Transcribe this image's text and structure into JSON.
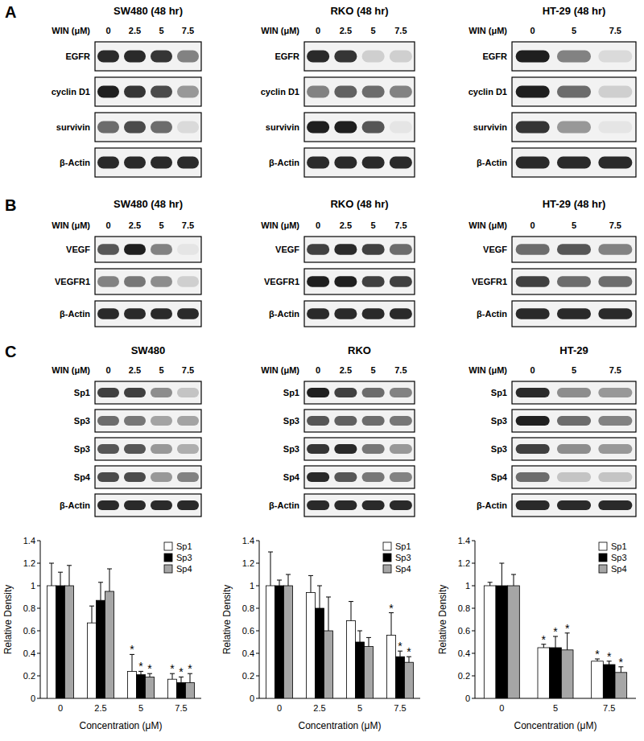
{
  "blots": [
    {
      "letter": "A",
      "panels": [
        {
          "title": "SW480 (48 hr)",
          "dose_label": "WIN (μM)",
          "doses": [
            "0",
            "2.5",
            "5",
            "7.5"
          ],
          "rows": [
            {
              "label": "EGFR",
              "intensity": [
                0.9,
                0.9,
                0.85,
                0.5
              ]
            },
            {
              "label": "cyclin D1",
              "intensity": [
                0.95,
                0.85,
                0.75,
                0.4
              ]
            },
            {
              "label": "survivin",
              "intensity": [
                0.6,
                0.75,
                0.6,
                0.1
              ]
            },
            {
              "label": "β-Actin",
              "intensity": [
                0.9,
                0.9,
                0.9,
                0.9
              ]
            }
          ]
        },
        {
          "title": "RKO (48 hr)",
          "dose_label": "WIN (μM)",
          "doses": [
            "0",
            "2.5",
            "5",
            "7.5"
          ],
          "rows": [
            {
              "label": "EGFR",
              "intensity": [
                0.9,
                0.85,
                0.15,
                0.15
              ]
            },
            {
              "label": "cyclin D1",
              "intensity": [
                0.5,
                0.65,
                0.6,
                0.5
              ]
            },
            {
              "label": "survivin",
              "intensity": [
                0.95,
                0.95,
                0.7,
                0.05
              ]
            },
            {
              "label": "β-Actin",
              "intensity": [
                0.9,
                0.9,
                0.9,
                0.9
              ]
            }
          ]
        },
        {
          "title": "HT-29 (48 hr)",
          "dose_label": "WIN (μM)",
          "doses": [
            "0",
            "5",
            "7.5"
          ],
          "rows": [
            {
              "label": "EGFR",
              "intensity": [
                0.95,
                0.5,
                0.1
              ]
            },
            {
              "label": "cyclin D1",
              "intensity": [
                0.95,
                0.6,
                0.15
              ]
            },
            {
              "label": "survivin",
              "intensity": [
                0.85,
                0.4,
                0.05
              ]
            },
            {
              "label": "β-Actin",
              "intensity": [
                0.9,
                0.9,
                0.9
              ]
            }
          ]
        }
      ]
    },
    {
      "letter": "B",
      "panels": [
        {
          "title": "SW480 (48 hr)",
          "dose_label": "WIN (μM)",
          "doses": [
            "0",
            "2.5",
            "5",
            "7.5"
          ],
          "rows": [
            {
              "label": "VEGF",
              "intensity": [
                0.7,
                0.95,
                0.5,
                0.05
              ]
            },
            {
              "label": "VEGFR1",
              "intensity": [
                0.5,
                0.55,
                0.45,
                0.15
              ]
            },
            {
              "label": "β-Actin",
              "intensity": [
                0.9,
                0.9,
                0.9,
                0.9
              ]
            }
          ]
        },
        {
          "title": "RKO (48 hr)",
          "dose_label": "WIN (μM)",
          "doses": [
            "0",
            "2.5",
            "5",
            "7.5"
          ],
          "rows": [
            {
              "label": "VEGF",
              "intensity": [
                0.8,
                0.9,
                0.8,
                0.6
              ]
            },
            {
              "label": "VEGFR1",
              "intensity": [
                0.95,
                0.95,
                0.8,
                0.8
              ]
            },
            {
              "label": "β-Actin",
              "intensity": [
                0.9,
                0.9,
                0.9,
                0.9
              ]
            }
          ]
        },
        {
          "title": "HT-29 (48 hr)",
          "dose_label": "WIN (μM)",
          "doses": [
            "0",
            "5",
            "7.5"
          ],
          "rows": [
            {
              "label": "VEGF",
              "intensity": [
                0.6,
                0.7,
                0.5
              ]
            },
            {
              "label": "VEGFR1",
              "intensity": [
                0.8,
                0.6,
                0.6
              ]
            },
            {
              "label": "β-Actin",
              "intensity": [
                0.9,
                0.9,
                0.9
              ]
            }
          ]
        }
      ]
    },
    {
      "letter": "C",
      "panels": [
        {
          "title": "SW480",
          "dose_label": "WIN (μM)",
          "doses": [
            "0",
            "2.5",
            "5",
            "7.5"
          ],
          "rows": [
            {
              "label": "Sp1",
              "intensity": [
                0.8,
                0.8,
                0.45,
                0.2
              ]
            },
            {
              "label": "Sp3",
              "intensity": [
                0.6,
                0.55,
                0.35,
                0.35
              ]
            },
            {
              "label": "Sp3",
              "intensity": [
                0.7,
                0.7,
                0.4,
                0.3
              ]
            },
            {
              "label": "Sp4",
              "intensity": [
                0.75,
                0.75,
                0.4,
                0.5
              ]
            },
            {
              "label": "β-Actin",
              "intensity": [
                0.9,
                0.9,
                0.9,
                0.9
              ]
            }
          ]
        },
        {
          "title": "RKO",
          "dose_label": "WIN (μM)",
          "doses": [
            "0",
            "2.5",
            "5",
            "7.5"
          ],
          "rows": [
            {
              "label": "Sp1",
              "intensity": [
                0.95,
                0.8,
                0.6,
                0.5
              ]
            },
            {
              "label": "Sp3",
              "intensity": [
                0.7,
                0.65,
                0.6,
                0.55
              ]
            },
            {
              "label": "Sp3",
              "intensity": [
                0.85,
                0.9,
                0.55,
                0.4
              ]
            },
            {
              "label": "Sp4",
              "intensity": [
                0.9,
                0.7,
                0.55,
                0.5
              ]
            },
            {
              "label": "β-Actin",
              "intensity": [
                0.9,
                0.9,
                0.9,
                0.9
              ]
            }
          ]
        },
        {
          "title": "HT-29",
          "dose_label": "WIN (μM)",
          "doses": [
            "0",
            "5",
            "7.5"
          ],
          "rows": [
            {
              "label": "Sp1",
              "intensity": [
                0.9,
                0.45,
                0.4
              ]
            },
            {
              "label": "Sp3",
              "intensity": [
                0.95,
                0.6,
                0.5
              ]
            },
            {
              "label": "Sp3",
              "intensity": [
                0.8,
                0.45,
                0.4
              ]
            },
            {
              "label": "Sp4",
              "intensity": [
                0.6,
                0.2,
                0.2
              ]
            },
            {
              "label": "β-Actin",
              "intensity": [
                0.9,
                0.9,
                0.9
              ]
            }
          ]
        }
      ]
    }
  ],
  "chart_data": [
    {
      "type": "bar",
      "x_label": "Concentration (μM)",
      "y_label": "Relative Density",
      "categories": [
        "0",
        "2.5",
        "5",
        "7.5"
      ],
      "ylim": [
        0,
        1.4
      ],
      "yticks": [
        0,
        0.2,
        0.4,
        0.6,
        0.8,
        1,
        1.2,
        1.4
      ],
      "grid": false,
      "legend": "upper right",
      "series": [
        {
          "name": "Sp1",
          "color": "#ffffff",
          "values": [
            1,
            0.67,
            0.24,
            0.17
          ],
          "errors": [
            0.2,
            0.15,
            0.15,
            0.05
          ],
          "significance": [
            null,
            null,
            "*",
            "*"
          ]
        },
        {
          "name": "Sp3",
          "color": "#000000",
          "values": [
            1,
            0.87,
            0.21,
            0.14
          ],
          "errors": [
            0.12,
            0.16,
            0.03,
            0.05
          ],
          "significance": [
            null,
            null,
            "*",
            "*"
          ]
        },
        {
          "name": "Sp4",
          "color": "#a6a6a6",
          "values": [
            1,
            0.95,
            0.19,
            0.14
          ],
          "errors": [
            0.18,
            0.2,
            0.03,
            0.08
          ],
          "significance": [
            null,
            null,
            "*",
            "*"
          ]
        }
      ]
    },
    {
      "type": "bar",
      "x_label": "Concentration (μM)",
      "y_label": "Relative Density",
      "categories": [
        "0",
        "2.5",
        "5",
        "7.5"
      ],
      "ylim": [
        0,
        1.4
      ],
      "yticks": [
        0,
        0.2,
        0.4,
        0.6,
        0.8,
        1,
        1.2,
        1.4
      ],
      "grid": false,
      "legend": "upper right",
      "series": [
        {
          "name": "Sp1",
          "color": "#ffffff",
          "values": [
            1,
            0.94,
            0.69,
            0.56
          ],
          "errors": [
            0.3,
            0.15,
            0.17,
            0.2
          ],
          "significance": [
            null,
            null,
            null,
            "*"
          ]
        },
        {
          "name": "Sp3",
          "color": "#000000",
          "values": [
            1,
            0.8,
            0.5,
            0.37
          ],
          "errors": [
            0.05,
            0.2,
            0.1,
            0.05
          ],
          "significance": [
            null,
            null,
            null,
            "*"
          ]
        },
        {
          "name": "Sp4",
          "color": "#a6a6a6",
          "values": [
            1,
            0.6,
            0.46,
            0.32
          ],
          "errors": [
            0.1,
            0.3,
            0.08,
            0.05
          ],
          "significance": [
            null,
            null,
            null,
            "*"
          ]
        }
      ]
    },
    {
      "type": "bar",
      "x_label": "Concentration (μM)",
      "y_label": "Relative Density",
      "categories": [
        "0",
        "5",
        "7.5"
      ],
      "ylim": [
        0,
        1.4
      ],
      "yticks": [
        0,
        0.2,
        0.4,
        0.6,
        0.8,
        1,
        1.2,
        1.4
      ],
      "grid": false,
      "legend": "upper right",
      "series": [
        {
          "name": "Sp1",
          "color": "#ffffff",
          "values": [
            1,
            0.45,
            0.33
          ],
          "errors": [
            0.03,
            0.03,
            0.02
          ],
          "significance": [
            null,
            "*",
            "*"
          ]
        },
        {
          "name": "Sp3",
          "color": "#000000",
          "values": [
            1,
            0.45,
            0.3
          ],
          "errors": [
            0.2,
            0.1,
            0.03
          ],
          "significance": [
            null,
            "*",
            "*"
          ]
        },
        {
          "name": "Sp4",
          "color": "#a6a6a6",
          "values": [
            1,
            0.43,
            0.23
          ],
          "errors": [
            0.1,
            0.15,
            0.05
          ],
          "significance": [
            null,
            "*",
            "*"
          ]
        }
      ]
    }
  ]
}
